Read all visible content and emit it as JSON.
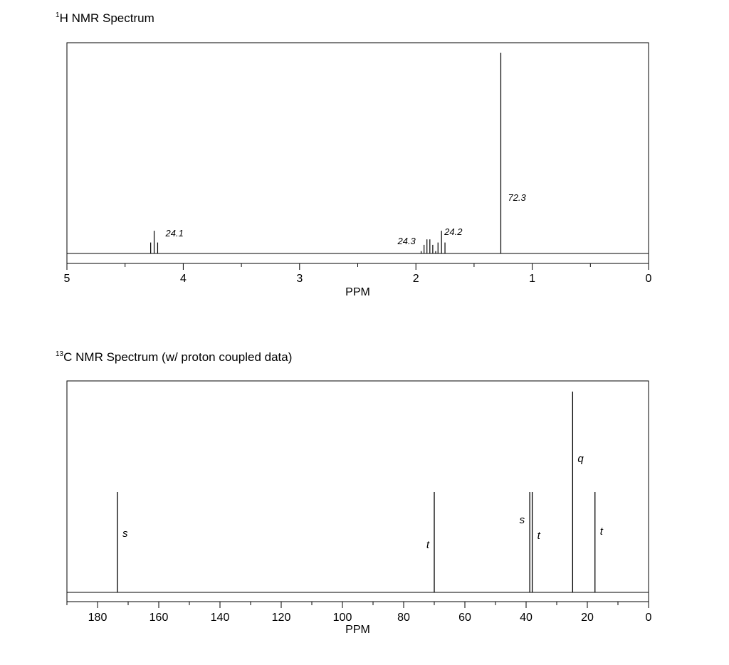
{
  "chart_data": [
    {
      "type": "nmr_spectrum",
      "title_sup": "1",
      "title_text": "H NMR Spectrum",
      "xlabel": "PPM",
      "xlim": [
        5,
        0
      ],
      "ticks": [
        5,
        4,
        3,
        2,
        1,
        0
      ],
      "peaks": [
        {
          "shift": 4.25,
          "integration": "24.1",
          "lines": [
            [
              4.28,
              0.28
            ],
            [
              4.25,
              0.58
            ],
            [
              4.22,
              0.28
            ]
          ]
        },
        {
          "shift": 1.88,
          "integration": "24.3",
          "lines": [
            [
              1.955,
              0.06
            ],
            [
              1.93,
              0.22
            ],
            [
              1.905,
              0.36
            ],
            [
              1.88,
              0.36
            ],
            [
              1.855,
              0.22
            ],
            [
              1.83,
              0.06
            ]
          ]
        },
        {
          "shift": 1.78,
          "integration": "24.2",
          "lines": [
            [
              1.81,
              0.28
            ],
            [
              1.78,
              0.58
            ],
            [
              1.75,
              0.28
            ]
          ]
        },
        {
          "shift": 1.27,
          "integration": "72.3",
          "lines": [
            [
              1.27,
              1.0
            ]
          ]
        }
      ]
    },
    {
      "type": "nmr_spectrum",
      "title_sup": "13",
      "title_text": "C NMR Spectrum (w/ proton coupled data)",
      "xlabel": "PPM",
      "xlim": [
        190,
        0
      ],
      "ticks": [
        180,
        160,
        140,
        120,
        100,
        80,
        60,
        40,
        20,
        0
      ],
      "peaks": [
        {
          "shift": 173.5,
          "height": 0.5,
          "multiplicity": "s",
          "label_side": "right"
        },
        {
          "shift": 70.0,
          "height": 0.5,
          "multiplicity": "t",
          "label_side": "left"
        },
        {
          "shift": 38.8,
          "height": 0.5,
          "multiplicity": "s",
          "label_side": "left"
        },
        {
          "shift": 38.0,
          "height": 0.5,
          "multiplicity": "t",
          "label_side": "right"
        },
        {
          "shift": 24.8,
          "height": 1.0,
          "multiplicity": "q",
          "label_side": "right"
        },
        {
          "shift": 17.5,
          "height": 0.5,
          "multiplicity": "t",
          "label_side": "right"
        }
      ]
    }
  ]
}
